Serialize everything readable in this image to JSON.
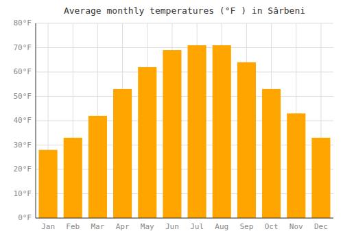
{
  "chart_data": {
    "type": "bar",
    "title": "Average monthly temperatures (°F ) in Sârbeni",
    "categories": [
      "Jan",
      "Feb",
      "Mar",
      "Apr",
      "May",
      "Jun",
      "Jul",
      "Aug",
      "Sep",
      "Oct",
      "Nov",
      "Dec"
    ],
    "values": [
      28,
      33,
      42,
      53,
      62,
      69,
      71,
      71,
      64,
      53,
      43,
      33
    ],
    "color": "#FFA500",
    "ylim": [
      0,
      80
    ],
    "yticks": [
      {
        "value": 0,
        "label": "0°F"
      },
      {
        "value": 10,
        "label": "10°F"
      },
      {
        "value": 20,
        "label": "20°F"
      },
      {
        "value": 30,
        "label": "30°F"
      },
      {
        "value": 40,
        "label": "40°F"
      },
      {
        "value": 50,
        "label": "50°F"
      },
      {
        "value": 60,
        "label": "60°F"
      },
      {
        "value": 70,
        "label": "70°F"
      },
      {
        "value": 80,
        "label": "80°F"
      }
    ],
    "grid": true
  }
}
